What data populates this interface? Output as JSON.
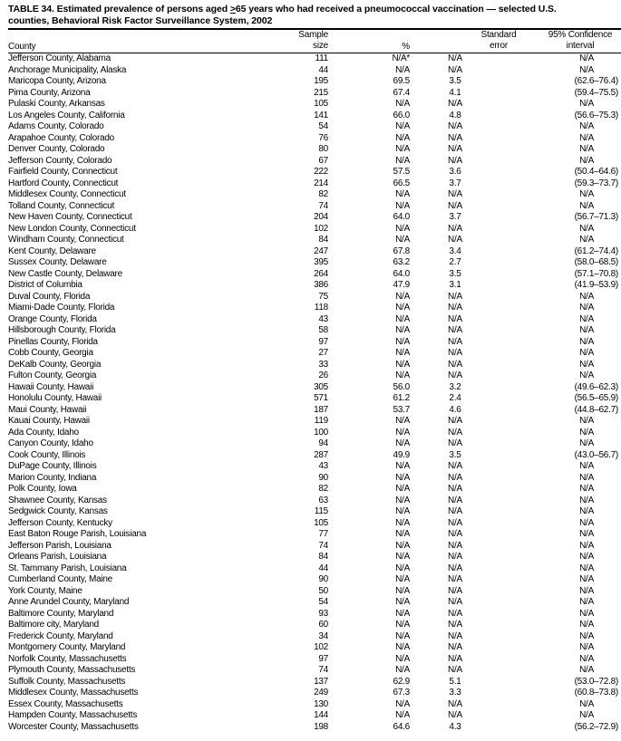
{
  "title": "TABLE 34. Estimated prevalence of persons aged ≥65 years who had received a pneumococcal vaccination — selected U.S. counties, Behavioral Risk Factor Surveillance System, 2002",
  "title_line1_prefix": "TABLE 34. Estimated prevalence of persons aged ",
  "title_ge": ">",
  "title_line1_suffix": "65 years who had received a pneumococcal vaccination — selected U.S.",
  "title_line2": "counties, Behavioral Risk Factor Surveillance System, 2002",
  "columns": {
    "county": "County",
    "sample_line1": "Sample",
    "sample_line2": "size",
    "percent": "%",
    "se_line1": "Standard",
    "se_line2": "error",
    "ci_line1": "95% Confidence",
    "ci_line2": "interval"
  },
  "rows": [
    [
      "Jefferson County, Alabama",
      "111",
      "N/A*",
      "N/A",
      "N/A"
    ],
    [
      "Anchorage Municipality, Alaska",
      "44",
      "N/A",
      "N/A",
      "N/A"
    ],
    [
      "Maricopa County, Arizona",
      "195",
      "69.5",
      "3.5",
      "(62.6–76.4)"
    ],
    [
      "Pima County, Arizona",
      "215",
      "67.4",
      "4.1",
      "(59.4–75.5)"
    ],
    [
      "Pulaski County, Arkansas",
      "105",
      "N/A",
      "N/A",
      "N/A"
    ],
    [
      "Los Angeles County, California",
      "141",
      "66.0",
      "4.8",
      "(56.6–75.3)"
    ],
    [
      "Adams County, Colorado",
      "54",
      "N/A",
      "N/A",
      "N/A"
    ],
    [
      "Arapahoe County, Colorado",
      "76",
      "N/A",
      "N/A",
      "N/A"
    ],
    [
      "Denver County, Colorado",
      "80",
      "N/A",
      "N/A",
      "N/A"
    ],
    [
      "Jefferson County, Colorado",
      "67",
      "N/A",
      "N/A",
      "N/A"
    ],
    [
      "Fairfield County, Connecticut",
      "222",
      "57.5",
      "3.6",
      "(50.4–64.6)"
    ],
    [
      "Hartford County, Connecticut",
      "214",
      "66.5",
      "3.7",
      "(59.3–73.7)"
    ],
    [
      "Middlesex County, Connecticut",
      "82",
      "N/A",
      "N/A",
      "N/A"
    ],
    [
      "Tolland County, Connecticut",
      "74",
      "N/A",
      "N/A",
      "N/A"
    ],
    [
      "New Haven County, Connecticut",
      "204",
      "64.0",
      "3.7",
      "(56.7–71.3)"
    ],
    [
      "New London County, Connecticut",
      "102",
      "N/A",
      "N/A",
      "N/A"
    ],
    [
      "Windham County, Connecticut",
      "84",
      "N/A",
      "N/A",
      "N/A"
    ],
    [
      "Kent County, Delaware",
      "247",
      "67.8",
      "3.4",
      "(61.2–74.4)"
    ],
    [
      "Sussex County, Delaware",
      "395",
      "63.2",
      "2.7",
      "(58.0–68.5)"
    ],
    [
      "New Castle County, Delaware",
      "264",
      "64.0",
      "3.5",
      "(57.1–70.8)"
    ],
    [
      "District of Columbia",
      "386",
      "47.9",
      "3.1",
      "(41.9–53.9)"
    ],
    [
      "Duval County, Florida",
      "75",
      "N/A",
      "N/A",
      "N/A"
    ],
    [
      "Miami-Dade County, Florida",
      "118",
      "N/A",
      "N/A",
      "N/A"
    ],
    [
      "Orange County, Florida",
      "43",
      "N/A",
      "N/A",
      "N/A"
    ],
    [
      "Hillsborough County, Florida",
      "58",
      "N/A",
      "N/A",
      "N/A"
    ],
    [
      "Pinellas County, Florida",
      "97",
      "N/A",
      "N/A",
      "N/A"
    ],
    [
      "Cobb County, Georgia",
      "27",
      "N/A",
      "N/A",
      "N/A"
    ],
    [
      "DeKalb County, Georgia",
      "33",
      "N/A",
      "N/A",
      "N/A"
    ],
    [
      "Fulton County, Georgia",
      "26",
      "N/A",
      "N/A",
      "N/A"
    ],
    [
      "Hawaii County, Hawaii",
      "305",
      "56.0",
      "3.2",
      "(49.6–62.3)"
    ],
    [
      "Honolulu County, Hawaii",
      "571",
      "61.2",
      "2.4",
      "(56.5–65.9)"
    ],
    [
      "Maui County, Hawaii",
      "187",
      "53.7",
      "4.6",
      "(44.8–62.7)"
    ],
    [
      "Kauai County, Hawaii",
      "119",
      "N/A",
      "N/A",
      "N/A"
    ],
    [
      "Ada County, Idaho",
      "100",
      "N/A",
      "N/A",
      "N/A"
    ],
    [
      "Canyon County, Idaho",
      "94",
      "N/A",
      "N/A",
      "N/A"
    ],
    [
      "Cook County, Illinois",
      "287",
      "49.9",
      "3.5",
      "(43.0–56.7)"
    ],
    [
      "DuPage County, Illinois",
      "43",
      "N/A",
      "N/A",
      "N/A"
    ],
    [
      "Marion County, Indiana",
      "90",
      "N/A",
      "N/A",
      "N/A"
    ],
    [
      "Polk County, Iowa",
      "82",
      "N/A",
      "N/A",
      "N/A"
    ],
    [
      "Shawnee County, Kansas",
      "63",
      "N/A",
      "N/A",
      "N/A"
    ],
    [
      "Sedgwick County, Kansas",
      "115",
      "N/A",
      "N/A",
      "N/A"
    ],
    [
      "Jefferson County, Kentucky",
      "105",
      "N/A",
      "N/A",
      "N/A"
    ],
    [
      "East Baton Rouge Parish, Louisiana",
      "77",
      "N/A",
      "N/A",
      "N/A"
    ],
    [
      "Jefferson Parish, Louisiana",
      "74",
      "N/A",
      "N/A",
      "N/A"
    ],
    [
      "Orleans Parish, Louisiana",
      "84",
      "N/A",
      "N/A",
      "N/A"
    ],
    [
      "St. Tammany Parish, Louisiana",
      "44",
      "N/A",
      "N/A",
      "N/A"
    ],
    [
      "Cumberland County, Maine",
      "90",
      "N/A",
      "N/A",
      "N/A"
    ],
    [
      "York County, Maine",
      "50",
      "N/A",
      "N/A",
      "N/A"
    ],
    [
      "Anne Arundel County, Maryland",
      "54",
      "N/A",
      "N/A",
      "N/A"
    ],
    [
      "Baltimore County, Maryland",
      "93",
      "N/A",
      "N/A",
      "N/A"
    ],
    [
      "Baltimore city, Maryland",
      "60",
      "N/A",
      "N/A",
      "N/A"
    ],
    [
      "Frederick County, Maryland",
      "34",
      "N/A",
      "N/A",
      "N/A"
    ],
    [
      "Montgomery County, Maryland",
      "102",
      "N/A",
      "N/A",
      "N/A"
    ],
    [
      "Norfolk County, Massachusetts",
      "97",
      "N/A",
      "N/A",
      "N/A"
    ],
    [
      "Plymouth County, Massachusetts",
      "74",
      "N/A",
      "N/A",
      "N/A"
    ],
    [
      "Suffolk County, Massachusetts",
      "137",
      "62.9",
      "5.1",
      "(53.0–72.8)"
    ],
    [
      "Middlesex County, Massachusetts",
      "249",
      "67.3",
      "3.3",
      "(60.8–73.8)"
    ],
    [
      "Essex County, Massachusetts",
      "130",
      "N/A",
      "N/A",
      "N/A"
    ],
    [
      "Hampden County, Massachusetts",
      "144",
      "N/A",
      "N/A",
      "N/A"
    ],
    [
      "Worcester County, Massachusetts",
      "198",
      "64.6",
      "4.3",
      "(56.2–72.9)"
    ]
  ]
}
